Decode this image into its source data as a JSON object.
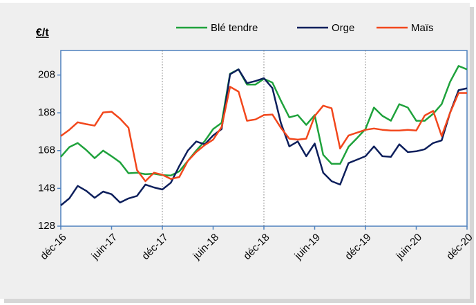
{
  "chart_data": {
    "type": "line",
    "unit_label": "€/t",
    "categories": [
      "déc-16",
      null,
      null,
      null,
      null,
      null,
      "juin-17",
      null,
      null,
      null,
      null,
      null,
      "déc-17",
      null,
      null,
      null,
      null,
      null,
      "juin-18",
      null,
      null,
      null,
      null,
      null,
      "déc-18",
      null,
      null,
      null,
      null,
      null,
      "juin-19",
      null,
      null,
      null,
      null,
      null,
      "déc-19",
      null,
      null,
      null,
      null,
      null,
      "juin-20",
      null,
      null,
      null,
      null,
      null,
      "déc-20"
    ],
    "series": [
      {
        "name": "Blé tendre",
        "color": "#1fa23c",
        "values": [
          164.7,
          169.8,
          172,
          168.3,
          164,
          168,
          165,
          161.8,
          156,
          156.3,
          155.5,
          155.8,
          155,
          154.8,
          157,
          162.5,
          168,
          173,
          179.4,
          182.7,
          208.7,
          211,
          203,
          203,
          206,
          204,
          194.5,
          185.6,
          186.8,
          181.6,
          186.8,
          165.8,
          161,
          161,
          170,
          174.6,
          179.4,
          190.8,
          186.4,
          183.8,
          192.6,
          190.8,
          183.8,
          183.8,
          187.5,
          192.6,
          204.4,
          212.8,
          211
        ]
      },
      {
        "name": "Orge",
        "color": "#0d1f5c",
        "values": [
          139,
          142.7,
          149.3,
          146.7,
          143,
          146.3,
          144.9,
          140.5,
          142.7,
          144,
          150,
          148.5,
          147.4,
          151,
          159.8,
          168,
          172.8,
          171.3,
          176,
          179.4,
          208.4,
          211,
          203.7,
          204.8,
          206.3,
          201.1,
          182.7,
          170.2,
          172.8,
          165,
          171.7,
          156.3,
          151.8,
          150,
          161.4,
          163.2,
          165,
          170.2,
          165,
          164.7,
          171.3,
          167.2,
          167.6,
          168.7,
          172,
          173.4,
          188.1,
          200,
          201
        ]
      },
      {
        "name": "Maïs",
        "color": "#f2471c",
        "values": [
          175.7,
          179,
          183,
          182,
          181.2,
          188.2,
          188.6,
          184.9,
          180.1,
          157.7,
          151.8,
          156.3,
          155.2,
          153,
          154,
          162.5,
          167.2,
          170.9,
          173.8,
          180.5,
          201.8,
          199.2,
          183.8,
          184.5,
          186.8,
          187.1,
          180.1,
          174.3,
          173.8,
          174.3,
          186.3,
          191.8,
          190.4,
          169.1,
          176,
          177.5,
          179,
          179.7,
          179,
          178.6,
          178.6,
          179,
          178.6,
          186.6,
          189,
          175.7,
          188,
          198.5,
          198.5
        ]
      }
    ],
    "ylim": [
      128,
      221
    ],
    "yticks": [
      128,
      148,
      168,
      188,
      208
    ]
  }
}
